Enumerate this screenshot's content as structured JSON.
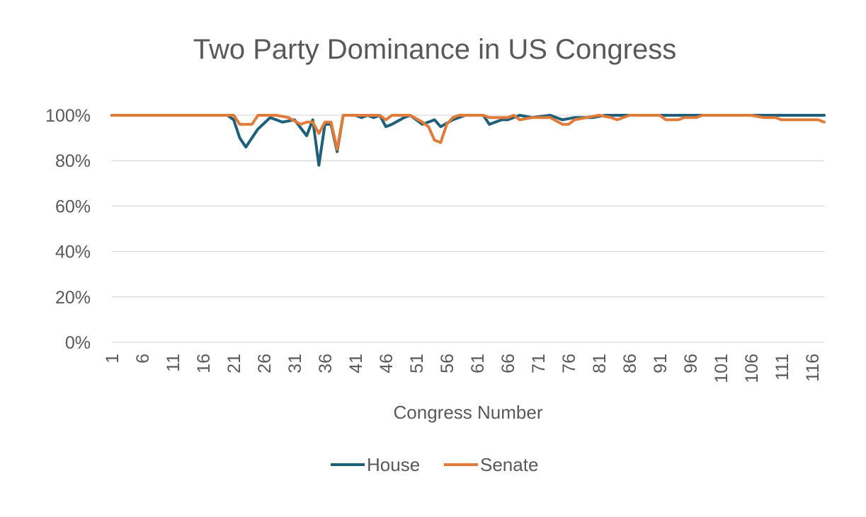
{
  "chart_data": {
    "type": "line",
    "title": "Two Party Dominance in US Congress",
    "xlabel": "Congress Number",
    "ylabel": "",
    "ylim": [
      0,
      100
    ],
    "y_ticks": [
      "0%",
      "20%",
      "40%",
      "60%",
      "80%",
      "100%"
    ],
    "x_tick_labels": [
      "1",
      "6",
      "11",
      "16",
      "21",
      "26",
      "31",
      "36",
      "41",
      "46",
      "51",
      "56",
      "61",
      "66",
      "71",
      "76",
      "81",
      "86",
      "91",
      "96",
      "101",
      "106",
      "111",
      "116"
    ],
    "x_range": [
      1,
      118
    ],
    "grid": true,
    "legend_position": "bottom",
    "series": [
      {
        "name": "House",
        "color": "#1f5f7a",
        "points": [
          [
            1,
            100
          ],
          [
            20,
            100
          ],
          [
            21,
            98
          ],
          [
            22,
            90
          ],
          [
            23,
            86
          ],
          [
            25,
            94
          ],
          [
            27,
            99
          ],
          [
            29,
            97
          ],
          [
            31,
            98
          ],
          [
            33,
            91
          ],
          [
            34,
            98
          ],
          [
            35,
            78
          ],
          [
            36,
            96
          ],
          [
            37,
            96
          ],
          [
            38,
            84
          ],
          [
            39,
            100
          ],
          [
            41,
            100
          ],
          [
            42,
            99
          ],
          [
            43,
            100
          ],
          [
            44,
            99
          ],
          [
            45,
            100
          ],
          [
            46,
            95
          ],
          [
            47,
            96
          ],
          [
            49,
            99
          ],
          [
            50,
            100
          ],
          [
            52,
            96
          ],
          [
            54,
            98
          ],
          [
            55,
            95
          ],
          [
            57,
            98
          ],
          [
            59,
            100
          ],
          [
            62,
            100
          ],
          [
            63,
            96
          ],
          [
            65,
            98
          ],
          [
            66,
            98
          ],
          [
            68,
            100
          ],
          [
            70,
            99
          ],
          [
            73,
            100
          ],
          [
            75,
            98
          ],
          [
            77,
            99
          ],
          [
            80,
            99
          ],
          [
            82,
            100
          ],
          [
            85,
            100
          ],
          [
            118,
            100
          ]
        ]
      },
      {
        "name": "Senate",
        "color": "#e07b39",
        "points": [
          [
            1,
            100
          ],
          [
            21,
            100
          ],
          [
            22,
            96
          ],
          [
            24,
            96
          ],
          [
            25,
            100
          ],
          [
            28,
            100
          ],
          [
            30,
            99
          ],
          [
            32,
            96
          ],
          [
            33,
            97
          ],
          [
            34,
            97
          ],
          [
            35,
            92
          ],
          [
            36,
            97
          ],
          [
            37,
            97
          ],
          [
            38,
            85
          ],
          [
            39,
            100
          ],
          [
            45,
            100
          ],
          [
            46,
            98
          ],
          [
            47,
            100
          ],
          [
            50,
            100
          ],
          [
            52,
            97
          ],
          [
            53,
            95
          ],
          [
            54,
            89
          ],
          [
            55,
            88
          ],
          [
            56,
            96
          ],
          [
            57,
            99
          ],
          [
            58,
            100
          ],
          [
            62,
            100
          ],
          [
            63,
            99
          ],
          [
            66,
            99
          ],
          [
            67,
            100
          ],
          [
            68,
            98
          ],
          [
            70,
            99
          ],
          [
            73,
            99
          ],
          [
            75,
            96
          ],
          [
            76,
            96
          ],
          [
            77,
            98
          ],
          [
            79,
            99
          ],
          [
            81,
            100
          ],
          [
            83,
            99
          ],
          [
            84,
            98
          ],
          [
            86,
            100
          ],
          [
            91,
            100
          ],
          [
            92,
            98
          ],
          [
            94,
            98
          ],
          [
            95,
            99
          ],
          [
            97,
            99
          ],
          [
            98,
            100
          ],
          [
            106,
            100
          ],
          [
            108,
            99
          ],
          [
            110,
            99
          ],
          [
            111,
            98
          ],
          [
            117,
            98
          ],
          [
            118,
            97
          ]
        ]
      }
    ]
  }
}
